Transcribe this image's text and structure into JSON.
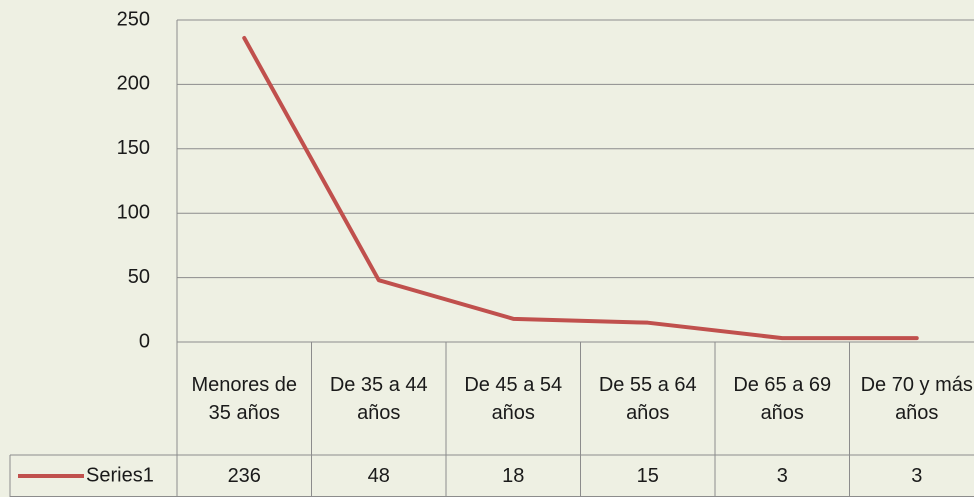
{
  "chart_data": {
    "type": "line",
    "categories": [
      "Menores de 35 años",
      "De 35 a 44 años",
      "De 45 a 54 años",
      "De 55 a 64 años",
      "De 65 a 69 años",
      "De 70 y más años"
    ],
    "series": [
      {
        "name": "Series1",
        "color": "#c0504d",
        "values": [
          236,
          48,
          18,
          15,
          3,
          3
        ]
      }
    ],
    "ylim": [
      0,
      250
    ],
    "yticks": [
      0,
      50,
      100,
      150,
      200,
      250
    ],
    "grid": true
  }
}
